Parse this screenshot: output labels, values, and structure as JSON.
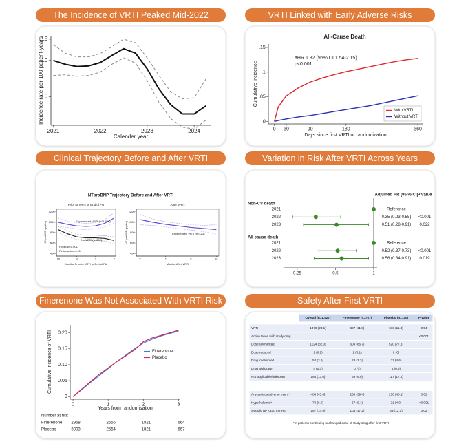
{
  "chart_data": [
    {
      "panel_title": "The Incidence of VRTI Peaked Mid-2022",
      "type": "line",
      "x_label": "Calender year",
      "y_label": "Incidence rate per 100 patient-years",
      "x": [
        2021,
        2021.25,
        2021.5,
        2021.75,
        2022,
        2022.25,
        2022.5,
        2022.75,
        2023,
        2023.25,
        2023.5,
        2023.75,
        2024,
        2024.25
      ],
      "series": [
        {
          "color": "#111111",
          "width": 2,
          "dashed": false,
          "values": [
            10,
            9.3,
            8.9,
            9.0,
            9.6,
            11.0,
            12.5,
            11.5,
            8.5,
            5.8,
            4.3,
            3.6,
            3.6,
            4.2
          ]
        },
        {
          "color": "#8a8a8a",
          "width": 1,
          "dashed": true,
          "values": [
            13.5,
            11.5,
            10.7,
            10.7,
            11.4,
            13.0,
            15.0,
            14.0,
            10.5,
            7.5,
            5.5,
            4.8,
            4.9,
            7.0
          ]
        },
        {
          "color": "#8a8a8a",
          "width": 1,
          "dashed": true,
          "values": [
            7.5,
            7.6,
            7.4,
            7.5,
            8.0,
            9.3,
            10.5,
            9.5,
            6.8,
            4.5,
            3.3,
            2.8,
            2.7,
            3.2
          ]
        }
      ],
      "xlim": [
        2020.95,
        2024.35
      ],
      "xticks": [
        2021,
        2022,
        2023,
        2024
      ],
      "ylim": [
        2.9,
        16
      ],
      "yticks": [
        5,
        10,
        15
      ],
      "log_y": true
    },
    {
      "panel_title": "VRTI Linked with Early Adverse Risks",
      "type": "line",
      "title": "All-Cause Death",
      "annotations": [
        "aHR 1.82 (95% CI 1.54-2.15)",
        "p<0.001"
      ],
      "x_label": "Days since first VRTI or randomization",
      "y_label": "Cumulative incidence",
      "x": [
        0,
        10,
        30,
        60,
        90,
        120,
        150,
        180,
        210,
        240,
        270,
        300,
        330,
        360
      ],
      "series": [
        {
          "name": "With VRTI",
          "color": "#e0252b",
          "width": 1.4,
          "dashed": false,
          "values": [
            0,
            0.03,
            0.052,
            0.068,
            0.08,
            0.088,
            0.095,
            0.101,
            0.106,
            0.111,
            0.116,
            0.121,
            0.125,
            0.128
          ]
        },
        {
          "name": "Without VRTI",
          "color": "#2b2fb5",
          "width": 1.4,
          "dashed": false,
          "values": [
            0,
            0.002,
            0.005,
            0.009,
            0.012,
            0.016,
            0.02,
            0.024,
            0.028,
            0.032,
            0.037,
            0.042,
            0.047,
            0.052
          ]
        }
      ],
      "xlim": [
        -15,
        372
      ],
      "xticks": [
        0,
        30,
        90,
        180,
        360
      ],
      "ylim": [
        -0.005,
        0.157
      ],
      "yticks": [
        0,
        {
          "value": 0.05,
          "label": ".05"
        },
        {
          "value": 0.1,
          "label": ".1"
        },
        {
          "value": 0.15,
          "label": ".15"
        }
      ],
      "legend": "lower right",
      "legend_frame": true
    },
    {
      "panel_title": "Clinical Trajectory Before and After VRTI",
      "type": "multi",
      "title": "NTproBNP Trajectory Before and After VRTI",
      "subplots": [
        {
          "type": "line",
          "subtitle": "Prior to VRTI or End of FU",
          "x_label": "Months Prior to VRTI or End of FU",
          "y_label": "NT-proBNP (pg/ml)",
          "annotations": [
            "Experienced VRTI (n=1,004)",
            "No VRTI (n=859)",
            "Poverall<0.001",
            "Pinteraction=0.11"
          ],
          "x": [
            -18,
            -15,
            -12,
            -9,
            -6,
            -3,
            0
          ],
          "series": [
            {
              "color": "#5a4fcf",
              "width": 1.2,
              "dashed": false,
              "values": [
                1000,
                960,
                930,
                920,
                930,
                980,
                1080
              ]
            },
            {
              "color": "#a9a3e6",
              "width": 0.6,
              "dashed": true,
              "values": [
                1080,
                1020,
                990,
                980,
                990,
                1050,
                1180
              ]
            },
            {
              "color": "#a9a3e6",
              "width": 0.6,
              "dashed": true,
              "values": [
                920,
                900,
                870,
                860,
                870,
                910,
                980
              ]
            },
            {
              "color": "#222222",
              "width": 1.2,
              "dashed": false,
              "values": [
                860,
                780,
                720,
                700,
                700,
                690,
                650
              ]
            },
            {
              "color": "#999999",
              "width": 0.6,
              "dashed": true,
              "values": [
                920,
                840,
                770,
                750,
                750,
                740,
                720
              ]
            },
            {
              "color": "#999999",
              "width": 0.6,
              "dashed": true,
              "values": [
                800,
                720,
                670,
                650,
                650,
                640,
                580
              ]
            }
          ],
          "xlim": [
            -18.5,
            0.5
          ],
          "xticks": [
            -18,
            -12,
            -6,
            0
          ],
          "ylim": [
            350,
            1250
          ],
          "yticks": [
            400,
            600,
            800,
            1000,
            1200
          ]
        },
        {
          "type": "line",
          "subtitle": "After VRTI",
          "x_label": "Months After VRTI",
          "y_label": "NT-proBNP (pg/ml)",
          "annotations": [
            "Experienced VRTI (n=423)"
          ],
          "x": [
            0,
            2,
            4,
            6,
            8,
            10,
            12
          ],
          "series": [
            {
              "color": "#5a4fcf",
              "width": 1.2,
              "dashed": false,
              "values": [
                1050,
                1000,
                960,
                930,
                900,
                880,
                860
              ]
            },
            {
              "color": "#a9a3e6",
              "width": 0.6,
              "dashed": true,
              "values": [
                1150,
                1060,
                1010,
                980,
                950,
                940,
                950
              ]
            },
            {
              "color": "#a9a3e6",
              "width": 0.6,
              "dashed": true,
              "values": [
                950,
                940,
                910,
                880,
                850,
                820,
                770
              ]
            }
          ],
          "vline": {
            "x": 0,
            "color": "#e05050"
          },
          "xlim": [
            -0.6,
            12.4
          ],
          "xticks": [
            0,
            4,
            8,
            12
          ],
          "ylim": [
            350,
            1250
          ],
          "yticks": [
            400,
            600,
            800,
            1000,
            1200
          ]
        }
      ]
    },
    {
      "panel_title": "Variation in Risk After VRTI Across Years",
      "type": "forest",
      "columns": [
        "Adjusted HR (95 % CI)",
        "P value"
      ],
      "groups": [
        {
          "label": "Non-CV death",
          "rows": [
            {
              "label": "2021",
              "value": 1,
              "lower": null,
              "upper": null,
              "text": "Reference",
              "p": null
            },
            {
              "label": "2022",
              "value": 0.35,
              "lower": 0.23,
              "upper": 0.55,
              "text": "0.35 (0.23-0.55)",
              "p": "<0.001"
            },
            {
              "label": "2023",
              "value": 0.51,
              "lower": 0.28,
              "upper": 0.91,
              "text": "0.51 (0.28-0.91)",
              "p": 0.022
            }
          ]
        },
        {
          "label": "All-cause death",
          "rows": [
            {
              "label": "2021",
              "value": 1,
              "lower": null,
              "upper": null,
              "text": "Reference",
              "p": null
            },
            {
              "label": "2022",
              "value": 0.52,
              "lower": 0.37,
              "upper": 0.73,
              "text": "0.52 (0.37-0.73)",
              "p": "<0.001"
            },
            {
              "label": "2023",
              "value": 0.56,
              "lower": 0.34,
              "upper": 0.91,
              "text": "0.56 (0.34-0.91)",
              "p": 0.019
            }
          ]
        }
      ],
      "xlim": [
        0.2,
        1
      ],
      "xticks": [
        0.25,
        0.5,
        1
      ],
      "log_x": true,
      "ref_line": 1,
      "color": "#3a8a2a"
    },
    {
      "panel_title": "Finerenone Was Not Associated With VRTI Risk",
      "type": "line",
      "x_label": "Years from randomisation",
      "y_label": "Cumulative incidence of VRTI",
      "x": [
        0,
        0.25,
        0.5,
        0.75,
        1,
        1.25,
        1.5,
        1.75,
        2,
        2.25,
        2.5,
        2.75,
        3
      ],
      "series": [
        {
          "name": "Finerenone",
          "color": "#3d7fd9",
          "width": 1.2,
          "dashed": false,
          "values": [
            0,
            0.022,
            0.045,
            0.066,
            0.088,
            0.11,
            0.13,
            0.15,
            0.168,
            0.18,
            0.19,
            0.198,
            0.205
          ]
        },
        {
          "name": "Placebo",
          "color": "#d6245a",
          "width": 1.2,
          "dashed": false,
          "values": [
            0,
            0.024,
            0.047,
            0.07,
            0.09,
            0.11,
            0.128,
            0.147,
            0.172,
            0.184,
            0.192,
            0.2,
            0.208
          ]
        }
      ],
      "xlim": [
        -0.08,
        3.05
      ],
      "xticks": [
        0,
        1,
        2,
        3
      ],
      "ylim": [
        -0.008,
        0.225
      ],
      "yticks": [
        0,
        0.05,
        {
          "value": 0.1,
          "label": "0.10"
        },
        0.15,
        {
          "value": 0.2,
          "label": "0.20"
        }
      ],
      "legend": "center right",
      "legend_frame": false,
      "at_risk": {
        "title": "Number at risk",
        "rows": [
          {
            "name": "Finerenone",
            "values": [
              2968,
              2555,
              1821,
              664
            ]
          },
          {
            "name": "Placebo",
            "values": [
              3003,
              2554,
              1821,
              667
            ]
          }
        ]
      }
    },
    {
      "panel_title": "Safety After First VRTI",
      "type": "table",
      "columns": [
        "Overall (n=1,427)",
        "Finerenone (n=707)",
        "Placebo (n=720)",
        "P-value"
      ],
      "sections": [
        {
          "rows": [
            {
              "label": "VRTI",
              "cells": [
                "1370 (23.1)",
                "697 (11.8)",
                "673 (11.4)",
                "0.54"
              ]
            },
            {
              "label": "Action taken with study drug",
              "cells": [
                null,
                null,
                null,
                "<0.001"
              ]
            },
            {
              "label": "Dose unchanged",
              "cells": [
                "1124 (82.0)",
                "604 (86.7)",
                "520 (77.3)",
                null
              ]
            },
            {
              "label": "Dose reduced",
              "cells": [
                "1 (0.1)",
                "1 (0.1)",
                "0 (0)",
                null
              ]
            },
            {
              "label": "Drug interrupted",
              "cells": [
                "54 (3.9)",
                "23 (3.3)",
                "31 (4.6)",
                null
              ]
            },
            {
              "label": "Drug withdrawn",
              "cells": [
                "4 (0.3)",
                "0 (0)",
                "4 (0.6)",
                null
              ]
            },
            {
              "label": "Not applicable/unknown",
              "cells": [
                "186 (13.6)",
                "69 (9.9)",
                "117 (17.4)",
                null
              ]
            }
          ]
        },
        {
          "rows": [
            {
              "label": "Any serious adverse event*",
              "cells": [
                "488 (43.4)",
                "238 (39.4)",
                "250 (48.1)",
                "0.02"
              ]
            },
            {
              "label": "Hyperkalemia*",
              "cells": [
                "78 (6.9)",
                "57 (9.4)",
                "21 (4.0)",
                "<0.001"
              ]
            },
            {
              "label": "Systolic BP <100 mmHg*",
              "cells": [
                "167 (14.9)",
                "104 (17.2)",
                "63 (12.1)",
                "0.02"
              ]
            }
          ]
        }
      ],
      "footnote": "*In patients continuing unchanged dose of study drug after first VRTI"
    }
  ]
}
